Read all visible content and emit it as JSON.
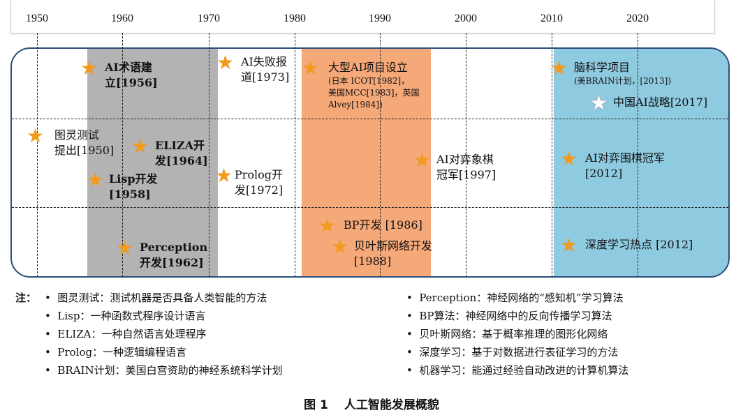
{
  "axis": {
    "years": [
      "1950",
      "1960",
      "1970",
      "1980",
      "1990",
      "2000",
      "2010",
      "2020"
    ]
  },
  "bands": {
    "gray": "#b3b3b3",
    "orange": "#f5a878",
    "blue": "#8fcbe0"
  },
  "events": [
    {
      "id": "term",
      "lines": [
        "AI术语建",
        "立[1956]"
      ]
    },
    {
      "id": "fail",
      "lines": [
        "AI失败报",
        "道[1973]"
      ]
    },
    {
      "id": "big",
      "lines": [
        "大型AI项目设立"
      ],
      "sub": [
        "(日本 ICOT[1982]，",
        "美国MCC[1983]，英国",
        "Alvey[1984])"
      ]
    },
    {
      "id": "brain",
      "lines": [
        "脑科学项目"
      ],
      "sub": [
        "(美BRAIN计划，[2013])"
      ]
    },
    {
      "id": "china",
      "lines": [
        "中国AI战略[2017]"
      ]
    },
    {
      "id": "turing",
      "lines": [
        "图灵测试",
        "提出[1950]"
      ]
    },
    {
      "id": "eliza",
      "lines": [
        "ELIZA开",
        "发[1964]"
      ]
    },
    {
      "id": "lisp",
      "lines": [
        "Lisp开发",
        "[1958]"
      ]
    },
    {
      "id": "prolog",
      "lines": [
        "Prolog开",
        "发[1972]"
      ]
    },
    {
      "id": "chess",
      "lines": [
        "AI对弈象棋",
        "冠军[1997]"
      ]
    },
    {
      "id": "go",
      "lines": [
        "AI对弈围棋冠军",
        "[2012]"
      ]
    },
    {
      "id": "bp",
      "lines": [
        "BP开发 [1986]"
      ]
    },
    {
      "id": "bayes",
      "lines": [
        "贝叶斯网络开发",
        "[1988]"
      ]
    },
    {
      "id": "perception",
      "lines": [
        "Perception",
        "开发[1962]"
      ]
    },
    {
      "id": "deep",
      "lines": [
        "深度学习热点 [2012]"
      ]
    }
  ],
  "notes": {
    "prefix": "注：",
    "left": [
      "图灵测试：测试机器是否具备人类智能的方法",
      "Lisp：一种函数式程序设计语言",
      "ELIZA：一种自然语言处理程序",
      "Prolog：一种逻辑编程语言",
      "BRAIN计划：美国白宫资助的神经系统科学计划"
    ],
    "right": [
      "Perception：神经网络的“感知机”学习算法",
      "BP算法：神经网络中的反向传播学习算法",
      "贝叶斯网络：基于概率推理的图形化网络",
      "深度学习：基于对数据进行表征学习的方法",
      "机器学习：能通过经验自动改进的计算机算法"
    ]
  },
  "caption": "图 1　 人工智能发展概貌"
}
